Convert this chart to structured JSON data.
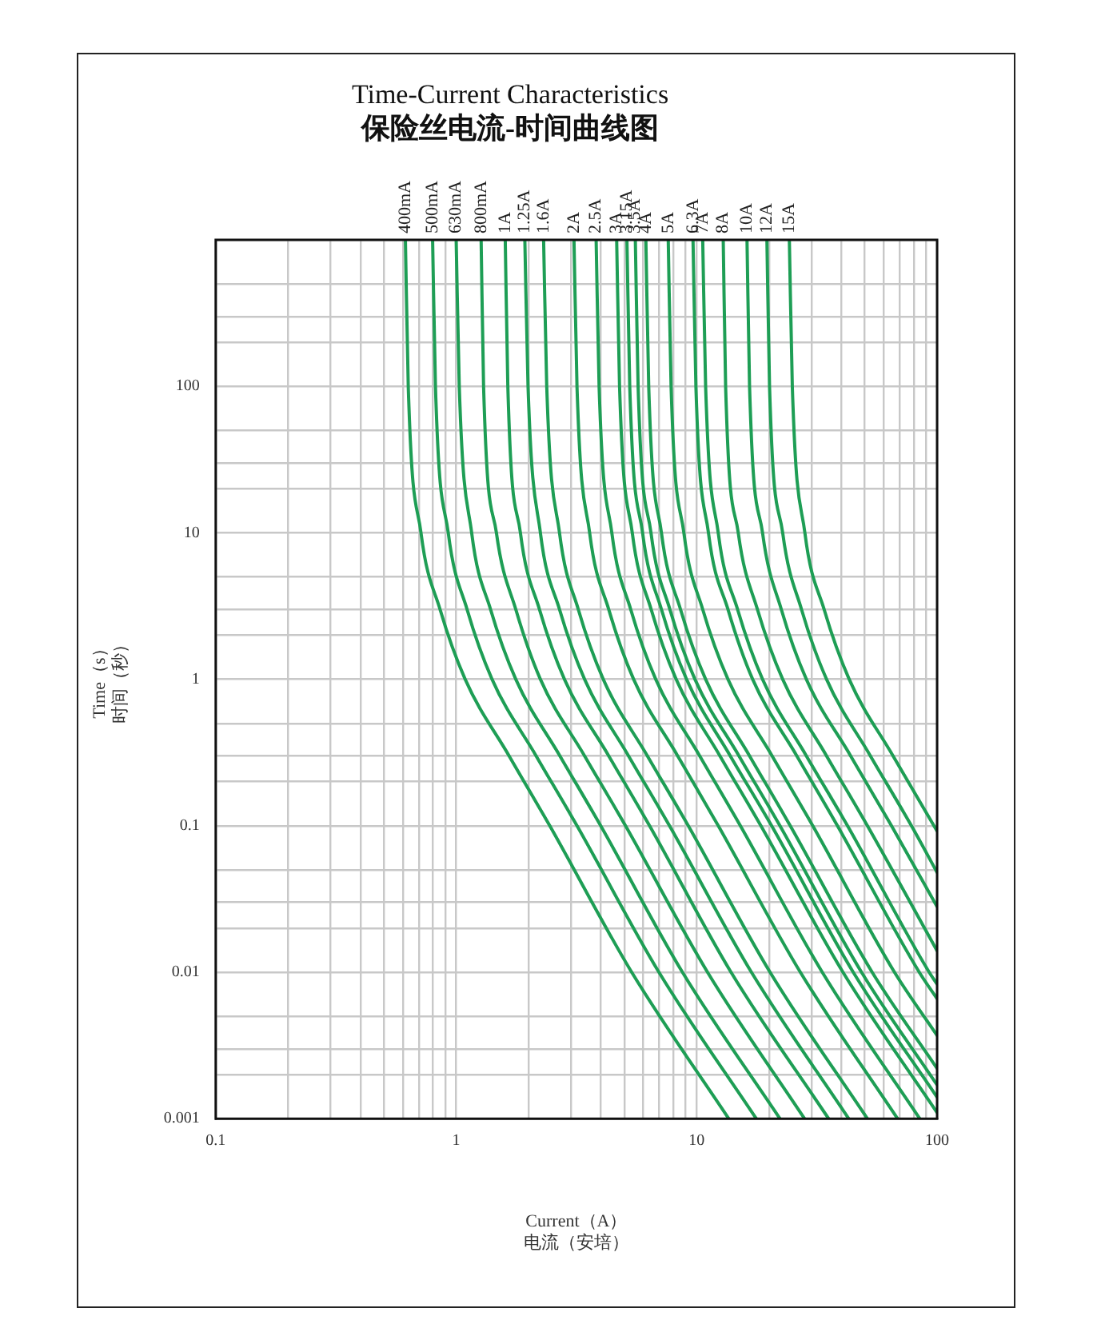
{
  "chart_data": {
    "type": "line",
    "title": "Time-Current Characteristics",
    "subtitle": "保险丝电流-时间曲线图",
    "xlabel": "Current（A）电流（安培）",
    "ylabel": "Time（s）时间（秒）",
    "log": "xy",
    "grid": true,
    "legend": false,
    "marker": "none",
    "line_style": "solid",
    "xlim": [
      0.1,
      100
    ],
    "ylim": [
      0.001,
      1000
    ],
    "xticks": [
      0.1,
      {
        "value": 0.2,
        "label": null
      },
      {
        "value": 0.3,
        "label": null
      },
      {
        "value": 0.4,
        "label": null
      },
      {
        "value": 0.5,
        "label": null
      },
      {
        "value": 0.6,
        "label": null
      },
      {
        "value": 0.7,
        "label": null
      },
      {
        "value": 0.8,
        "label": null
      },
      {
        "value": 0.9,
        "label": null
      },
      1,
      {
        "value": 2,
        "label": null
      },
      {
        "value": 3,
        "label": null
      },
      {
        "value": 4,
        "label": null
      },
      {
        "value": 5,
        "label": null
      },
      {
        "value": 6,
        "label": null
      },
      {
        "value": 7,
        "label": null
      },
      {
        "value": 8,
        "label": null
      },
      {
        "value": 9,
        "label": null
      },
      10,
      {
        "value": 20,
        "label": null
      },
      {
        "value": 30,
        "label": null
      },
      {
        "value": 40,
        "label": null
      },
      {
        "value": 50,
        "label": null
      },
      {
        "value": 60,
        "label": null
      },
      {
        "value": 70,
        "label": null
      },
      {
        "value": 80,
        "label": null
      },
      {
        "value": 90,
        "label": null
      },
      100
    ],
    "yticks": [
      0.001,
      {
        "value": 0.002,
        "label": null
      },
      {
        "value": 0.003,
        "label": null
      },
      {
        "value": 0.005,
        "label": null
      },
      0.01,
      {
        "value": 0.02,
        "label": null
      },
      {
        "value": 0.03,
        "label": null
      },
      {
        "value": 0.05,
        "label": null
      },
      0.1,
      {
        "value": 0.2,
        "label": null
      },
      {
        "value": 0.3,
        "label": null
      },
      {
        "value": 0.5,
        "label": null
      },
      1,
      {
        "value": 2,
        "label": null
      },
      {
        "value": 3,
        "label": null
      },
      {
        "value": 5,
        "label": null
      },
      10,
      {
        "value": 20,
        "label": null
      },
      {
        "value": 30,
        "label": null
      },
      {
        "value": 50,
        "label": null
      },
      100,
      {
        "value": 200,
        "label": null
      },
      {
        "value": 300,
        "label": null
      },
      {
        "value": 500,
        "label": null
      },
      {
        "value": 1000,
        "label": null
      }
    ],
    "series": [
      {
        "name": "400mA",
        "color": "#1e9e55",
        "x": [
          0.615,
          0.632,
          0.714,
          0.857,
          1.09,
          1.66,
          2.45,
          5.37,
          13.6
        ],
        "values": [
          1000,
          100,
          10,
          3,
          1,
          0.3,
          0.1,
          0.01,
          0.001
        ]
      },
      {
        "name": "500mA",
        "color": "#1e9e55",
        "x": [
          0.798,
          0.82,
          0.927,
          1.11,
          1.41,
          2.15,
          3.18,
          6.97,
          17.7
        ],
        "values": [
          1000,
          100,
          10,
          3,
          1,
          0.3,
          0.1,
          0.01,
          0.001
        ]
      },
      {
        "name": "630mA",
        "color": "#1e9e55",
        "x": [
          1,
          1.03,
          1.16,
          1.39,
          1.77,
          2.7,
          3.99,
          8.73,
          22.2
        ],
        "values": [
          1000,
          100,
          10,
          3,
          1,
          0.3,
          0.1,
          0.01,
          0.001
        ]
      },
      {
        "name": "800mA",
        "color": "#1e9e55",
        "x": [
          1.27,
          1.3,
          1.47,
          1.77,
          2.24,
          3.42,
          5.06,
          11.1,
          28.1
        ],
        "values": [
          1000,
          100,
          10,
          3,
          1,
          0.3,
          0.1,
          0.01,
          0.001
        ]
      },
      {
        "name": "1A",
        "color": "#1e9e55",
        "x": [
          1.6,
          1.64,
          1.85,
          2.22,
          2.82,
          4.31,
          6.37,
          13.9,
          35.4
        ],
        "values": [
          1000,
          100,
          10,
          3,
          1,
          0.3,
          0.1,
          0.01,
          0.001
        ]
      },
      {
        "name": "1.25A",
        "color": "#1e9e55",
        "x": [
          1.93,
          1.99,
          2.24,
          2.69,
          3.42,
          5.21,
          7.71,
          16.9,
          42.9
        ],
        "values": [
          1000,
          100,
          10,
          3,
          1,
          0.3,
          0.1,
          0.01,
          0.001
        ]
      },
      {
        "name": "1.6A",
        "color": "#1e9e55",
        "x": [
          2.31,
          2.38,
          2.69,
          3.22,
          4.09,
          6.24,
          9.23,
          20.2,
          51.3
        ],
        "values": [
          1000,
          100,
          10,
          3,
          1,
          0.3,
          0.1,
          0.01,
          0.001
        ]
      },
      {
        "name": "2A",
        "color": "#1e9e55",
        "x": [
          3.09,
          3.18,
          3.59,
          4.31,
          5.47,
          8.34,
          12.3,
          27,
          68.5
        ],
        "values": [
          1000,
          100,
          10,
          3,
          1,
          0.3,
          0.1,
          0.01,
          0.001
        ]
      },
      {
        "name": "2.5A",
        "color": "#1e9e55",
        "x": [
          3.82,
          3.93,
          4.44,
          5.32,
          6.76,
          10.3,
          15.2,
          33.3,
          84.7
        ],
        "values": [
          1000,
          100,
          10,
          3,
          1,
          0.3,
          0.1,
          0.01,
          0.001
        ]
      },
      {
        "name": "3A",
        "color": "#1e9e55",
        "x": [
          4.65,
          4.78,
          5.4,
          6.47,
          8.22,
          12.5,
          18.5,
          40.6,
          100
        ],
        "values": [
          1000,
          100,
          10,
          3,
          1,
          0.3,
          0.1,
          0.01,
          0.0011
        ]
      },
      {
        "name": "3.15A",
        "color": "#1e9e55",
        "x": [
          5.13,
          5.27,
          5.96,
          7.14,
          9.08,
          13.8,
          20.5,
          44.8,
          100
        ],
        "values": [
          1000,
          100,
          10,
          3,
          1,
          0.3,
          0.1,
          0.01,
          0.0014
        ]
      },
      {
        "name": "3.5A",
        "color": "#1e9e55",
        "x": [
          5.56,
          5.71,
          6.46,
          7.74,
          9.84,
          15,
          22.2,
          48.5,
          100
        ],
        "values": [
          1000,
          100,
          10,
          3,
          1,
          0.3,
          0.1,
          0.01,
          0.0017
        ]
      },
      {
        "name": "4A",
        "color": "#1e9e55",
        "x": [
          6.15,
          6.32,
          7.14,
          8.57,
          10.9,
          16.6,
          24.5,
          53.7,
          100
        ],
        "values": [
          1000,
          100,
          10,
          3,
          1,
          0.3,
          0.1,
          0.01,
          0.0022
        ]
      },
      {
        "name": "5A",
        "color": "#1e9e55",
        "x": [
          7.62,
          7.83,
          8.85,
          10.6,
          13.5,
          20.6,
          30.4,
          66.5,
          100
        ],
        "values": [
          1000,
          100,
          10,
          3,
          1,
          0.3,
          0.1,
          0.01,
          0.0037
        ]
      },
      {
        "name": "6.3A",
        "color": "#1e9e55",
        "x": [
          9.66,
          9.93,
          11.2,
          13.5,
          17.1,
          26.1,
          38.5,
          84.3,
          100
        ],
        "values": [
          1000,
          100,
          10,
          3,
          1,
          0.3,
          0.1,
          0.01,
          0.0066
        ]
      },
      {
        "name": "7A",
        "color": "#1e9e55",
        "x": [
          10.6,
          10.9,
          12.3,
          14.8,
          18.8,
          28.6,
          42.4,
          92.7,
          100
        ],
        "values": [
          1000,
          100,
          10,
          3,
          1,
          0.3,
          0.1,
          0.01,
          0.0083
        ]
      },
      {
        "name": "8A",
        "color": "#1e9e55",
        "x": [
          12.9,
          13.2,
          14.9,
          17.9,
          22.8,
          34.7,
          51.3,
          100
        ],
        "values": [
          1000,
          100,
          10,
          3,
          1,
          0.3,
          0.1,
          0.014
        ]
      },
      {
        "name": "10A",
        "color": "#1e9e55",
        "x": [
          16.2,
          16.6,
          18.8,
          22.5,
          28.6,
          43.7,
          64.6,
          100
        ],
        "values": [
          1000,
          100,
          10,
          3,
          1,
          0.3,
          0.1,
          0.028
        ]
      },
      {
        "name": "12A",
        "color": "#1e9e55",
        "x": [
          19.6,
          20.1,
          22.8,
          27.3,
          34.7,
          52.8,
          78.2,
          100
        ],
        "values": [
          1000,
          100,
          10,
          3,
          1,
          0.3,
          0.1,
          0.048
        ]
      },
      {
        "name": "15A",
        "color": "#1e9e55",
        "x": [
          24.3,
          25,
          28.2,
          33.9,
          43.1,
          65.6,
          97,
          100
        ],
        "values": [
          1000,
          100,
          10,
          3,
          1,
          0.3,
          0.1,
          0.092
        ]
      }
    ]
  }
}
